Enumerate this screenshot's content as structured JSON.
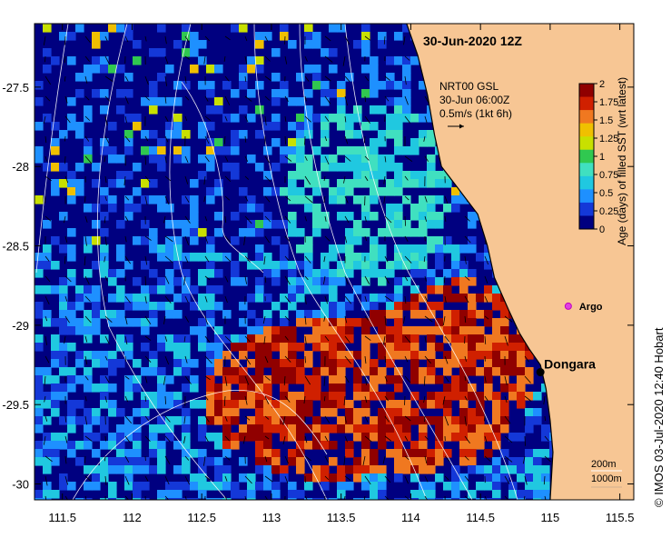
{
  "map": {
    "title": "30-Jun-2020 12Z",
    "credit": "© IMOS 03-Jul-2020 12:40 Hobart",
    "current_legend": {
      "line1": "NRT00 GSL",
      "line2": "30-Jun 06:00Z",
      "line3": "0.5m/s (1kt 6h)"
    },
    "depth_legend": {
      "a": "200m",
      "b": "1000m"
    },
    "places": [
      {
        "name": "Dongara",
        "lon": 114.93,
        "lat": -29.25
      },
      {
        "name": "Argo",
        "lon": 115.13,
        "lat": -28.88
      }
    ],
    "colorbar": {
      "title": "Age (days) of filled SST (wrt latest)",
      "ticks": [
        "2",
        "1.75",
        "1.5",
        "1.25",
        "1",
        "0.75",
        "0.5",
        "0.25",
        "0"
      ],
      "colors": [
        "#000080",
        "#1438d8",
        "#1e90ff",
        "#20c8e0",
        "#40e0c0",
        "#30c850",
        "#c8e000",
        "#f0c000",
        "#f07820",
        "#d02000",
        "#900000"
      ]
    },
    "colors": {
      "land": "#f7c694",
      "coast": "#000000",
      "contour": "#ffffff",
      "argo": "#e040e0"
    }
  },
  "chart_data": {
    "type": "heatmap",
    "title": "30-Jun-2020 12Z",
    "xlim": [
      111.3,
      115.6
    ],
    "ylim": [
      -30.1,
      -27.1
    ],
    "x_ticks": [
      "111.5",
      "112",
      "112.5",
      "113",
      "113.5",
      "114",
      "114.5",
      "115",
      "115.5"
    ],
    "x_tick_values": [
      111.5,
      112,
      112.5,
      113,
      113.5,
      114,
      114.5,
      115,
      115.5
    ],
    "y_ticks": [
      "-27.5",
      "-28",
      "-28.5",
      "-29",
      "-29.5",
      "-30"
    ],
    "y_tick_values": [
      -27.5,
      -28,
      -28.5,
      -29,
      -29.5,
      -30
    ],
    "colorbar_range": [
      0,
      2
    ],
    "colorbar_label": "Age (days) of filled SST (wrt latest)",
    "coastline": [
      [
        113.97,
        -27.1
      ],
      [
        114.05,
        -27.3
      ],
      [
        114.12,
        -27.55
      ],
      [
        114.17,
        -27.8
      ],
      [
        114.22,
        -28.0
      ],
      [
        114.35,
        -28.15
      ],
      [
        114.48,
        -28.3
      ],
      [
        114.55,
        -28.5
      ],
      [
        114.6,
        -28.7
      ],
      [
        114.7,
        -28.9
      ],
      [
        114.78,
        -29.05
      ],
      [
        114.85,
        -29.15
      ],
      [
        114.93,
        -29.25
      ],
      [
        114.97,
        -29.4
      ],
      [
        115.0,
        -29.6
      ],
      [
        115.02,
        -29.8
      ],
      [
        115.0,
        -30.1
      ]
    ]
  }
}
